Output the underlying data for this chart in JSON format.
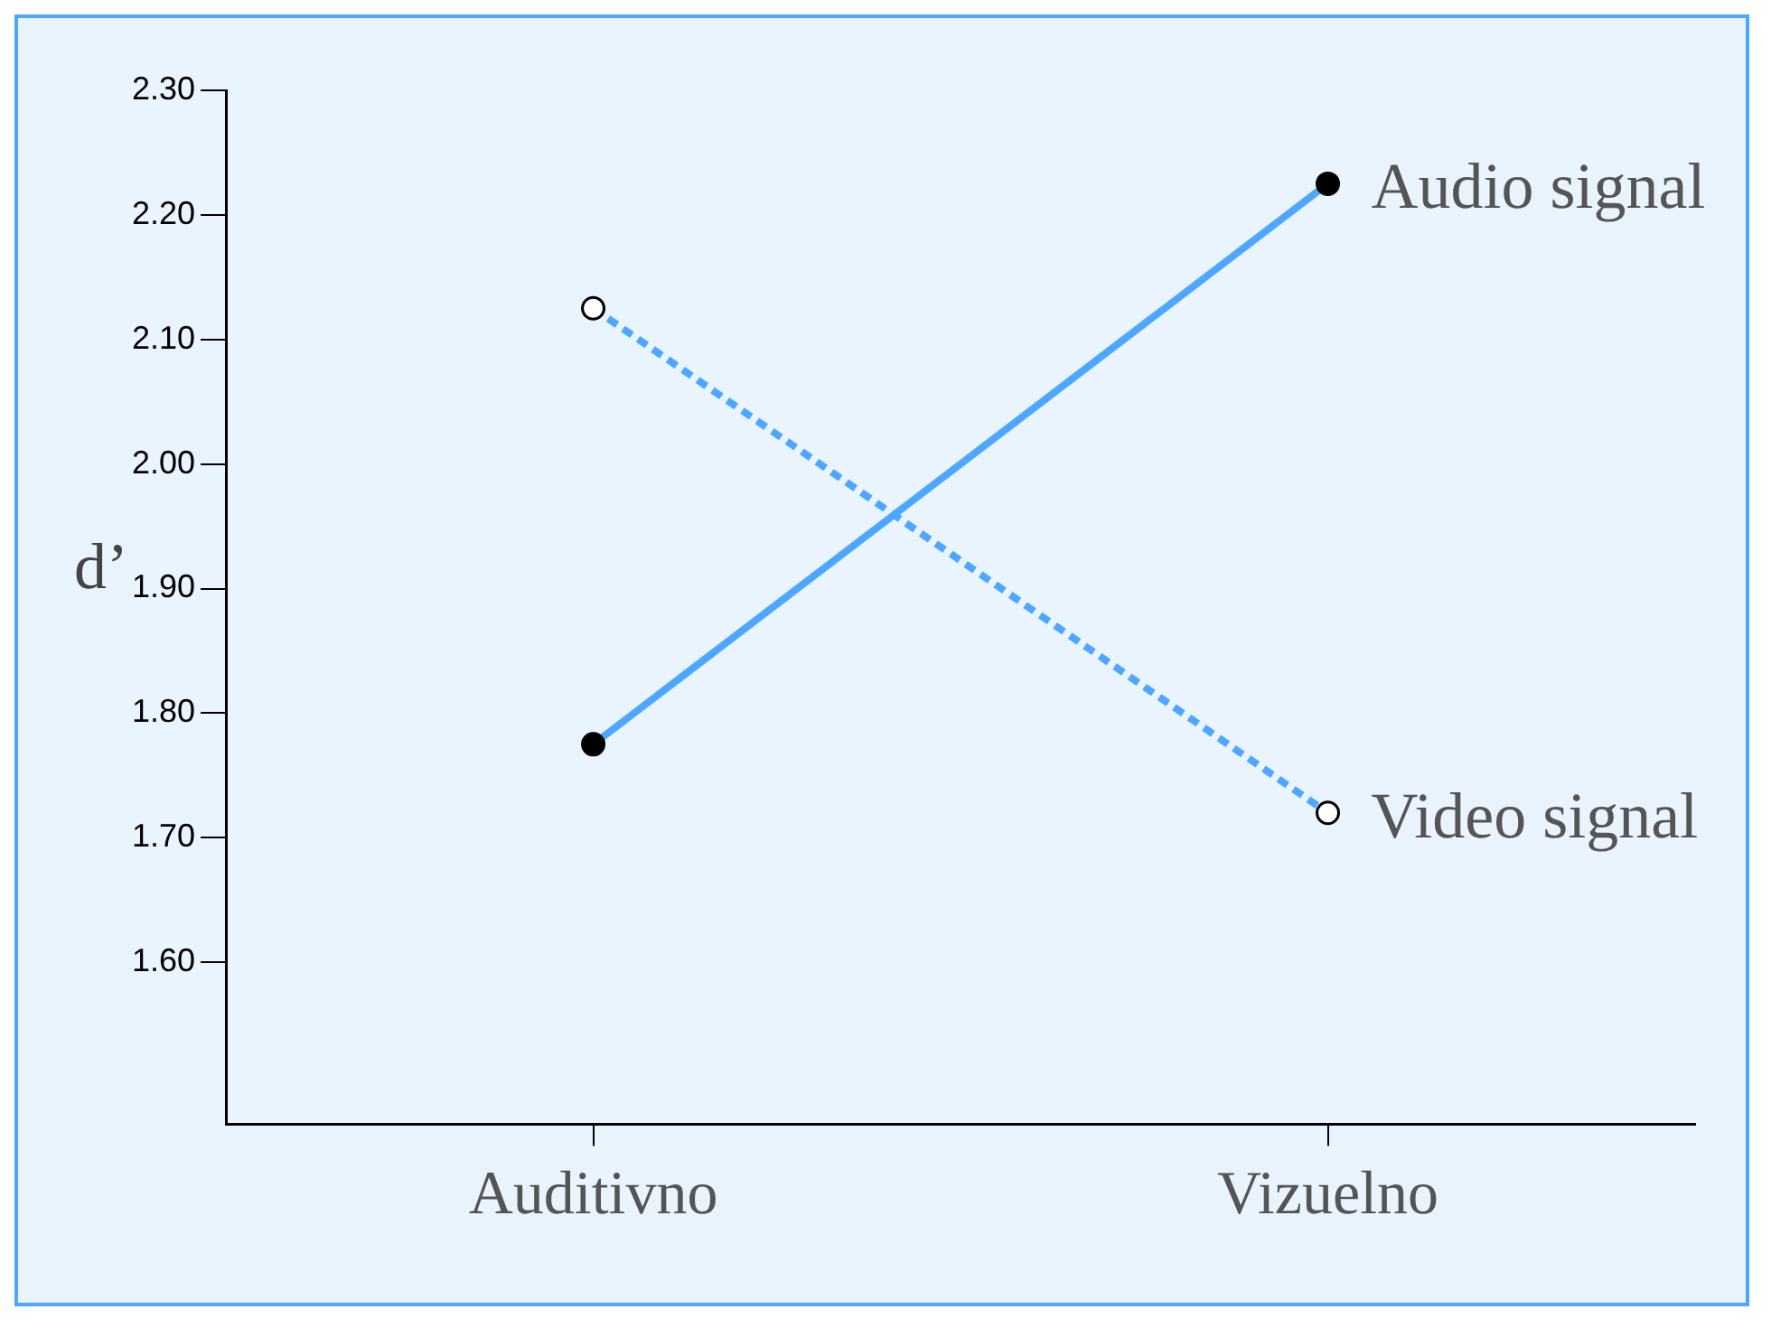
{
  "chart_data": {
    "type": "line",
    "ylabel": "d’",
    "categories": [
      "Auditivno",
      "Vizuelno"
    ],
    "series": [
      {
        "name": "Audio signal",
        "color": "#4da6ff",
        "values": [
          1.775,
          2.225
        ],
        "line_style": "solid"
      },
      {
        "name": "Video signal",
        "color": "#4da6ff",
        "values": [
          2.125,
          1.72
        ],
        "line_style": "dashed"
      }
    ],
    "ylim": [
      1.47,
      2.3
    ],
    "yticks": [
      {
        "value": 1.6,
        "label": "1.60"
      },
      {
        "value": 1.7,
        "label": "1.70"
      },
      {
        "value": 1.8,
        "label": "1.80"
      },
      {
        "value": 1.9,
        "label": "1.90"
      },
      {
        "value": 2.0,
        "label": "2.00"
      },
      {
        "value": 2.1,
        "label": "2.10"
      },
      {
        "value": 2.2,
        "label": "2.20"
      },
      {
        "value": 2.3,
        "label": "2.30"
      }
    ],
    "grid": false,
    "legend": false,
    "marker": "circle"
  }
}
